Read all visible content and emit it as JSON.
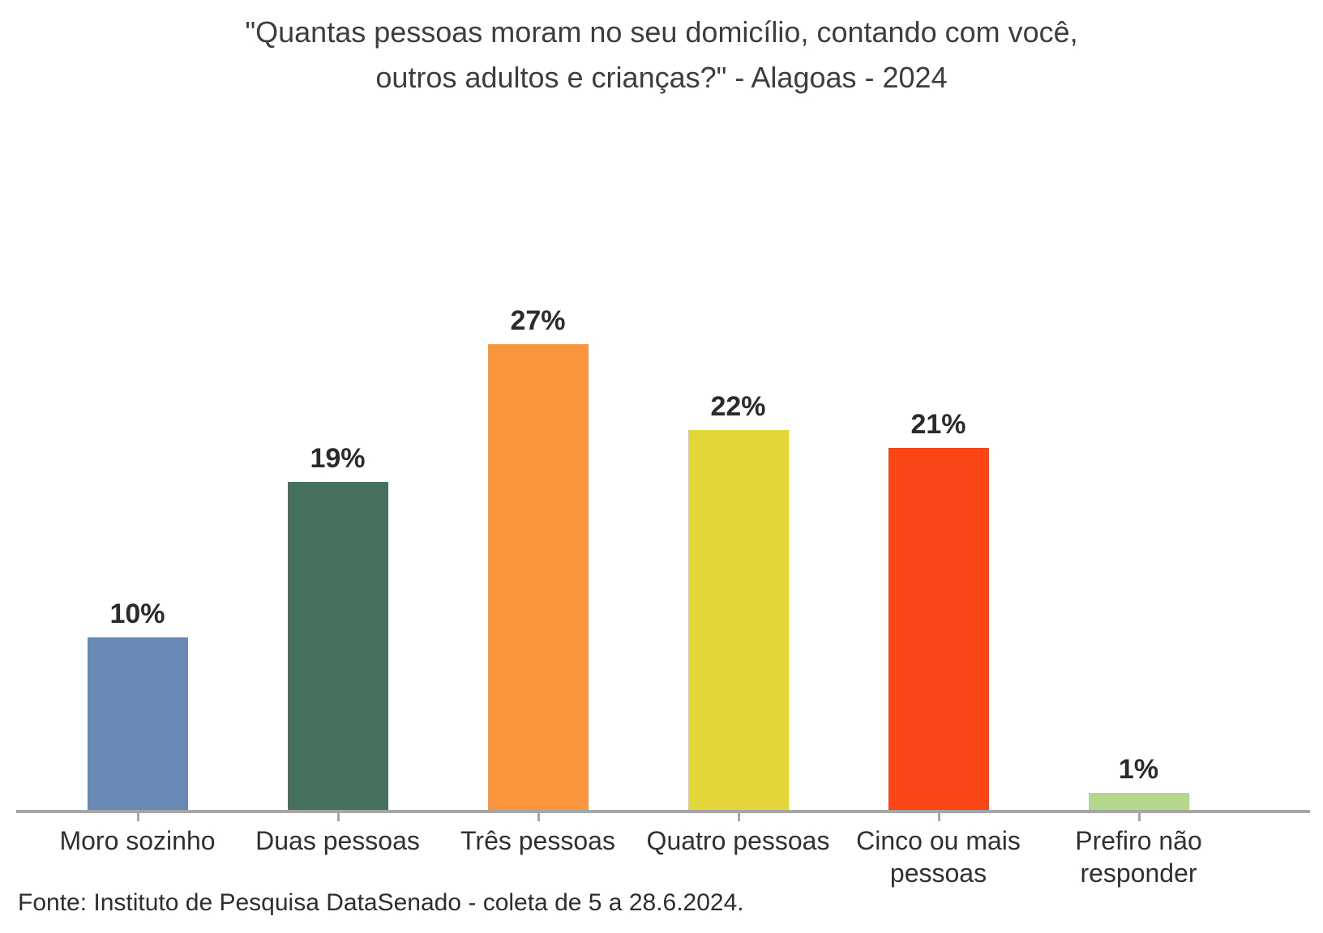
{
  "title": "\"Quantas pessoas moram no seu domicílio, contando com você,\noutros adultos e crianças?\" - Alagoas - 2024",
  "source": "Fonte: Instituto de Pesquisa DataSenado - coleta de 5 a 28.6.2024.",
  "chart_data": {
    "type": "bar",
    "title": "\"Quantas pessoas moram no seu domicílio, contando com você, outros adultos e crianças?\" - Alagoas - 2024",
    "categories": [
      "Moro sozinho",
      "Duas pessoas",
      "Três pessoas",
      "Quatro pessoas",
      "Cinco ou mais pessoas",
      "Prefiro não responder"
    ],
    "values": [
      10,
      19,
      27,
      22,
      21,
      1
    ],
    "value_labels": [
      "10%",
      "19%",
      "27%",
      "22%",
      "21%",
      "1%"
    ],
    "bar_colors": [
      "#6789b4",
      "#47715f",
      "#f9953d",
      "#e2d63b",
      "#fa4616",
      "#b3d88c"
    ],
    "xlabel": "",
    "ylabel": "",
    "ylim": [
      0,
      31
    ],
    "grid": false,
    "legend": false,
    "axis_color": "#a6a6a6",
    "text_color": "#303030"
  }
}
